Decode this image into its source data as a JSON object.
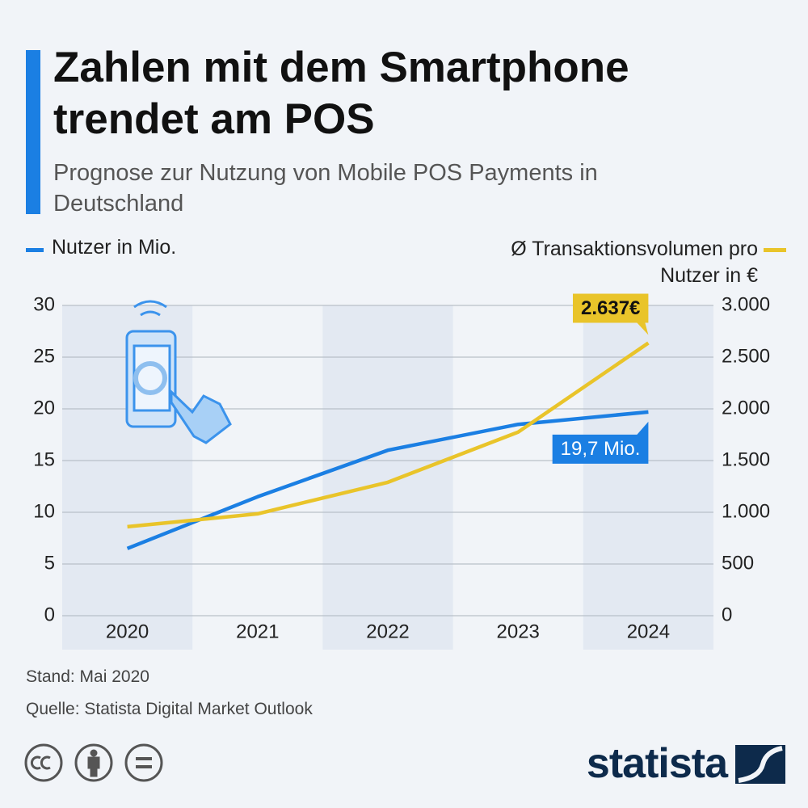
{
  "title": "Zahlen mit dem Smartphone trendet am POS",
  "subtitle": "Prognose zur Nutzung von Mobile POS Payments in Deutschland",
  "chart_data": {
    "type": "line",
    "categories": [
      "2020",
      "2021",
      "2022",
      "2023",
      "2024"
    ],
    "series": [
      {
        "name": "Nutzer in Mio.",
        "color": "#1b7fe3",
        "values": [
          6.5,
          11.5,
          16,
          18.5,
          19.7
        ],
        "value_labels": [
          null,
          null,
          null,
          null,
          "19,7 Mio."
        ]
      },
      {
        "name": "Ø Transaktionsvolumen pro Nutzer in €",
        "color": "#e9c42a",
        "axis": "y2",
        "values": [
          860,
          985,
          1290,
          1775,
          2637
        ],
        "value_labels": [
          null,
          null,
          null,
          null,
          "2.637€"
        ]
      }
    ],
    "ylim": [
      0,
      30
    ],
    "yticks": [
      0,
      5,
      10,
      15,
      20,
      25,
      30
    ],
    "y2lim": [
      0,
      3000
    ],
    "y2ticks": [
      0,
      500,
      {
        "value": 1000,
        "label": "1.000"
      },
      {
        "value": 1500,
        "label": "1.500"
      },
      {
        "value": 2000,
        "label": "2.000"
      },
      {
        "value": 2500,
        "label": "2.500"
      },
      {
        "value": 3000,
        "label": "3.000"
      }
    ],
    "grid": true
  },
  "footer": {
    "note": "Stand: Mai 2020",
    "source": "Quelle: Statista Digital Market Outlook",
    "brand": "statista"
  }
}
